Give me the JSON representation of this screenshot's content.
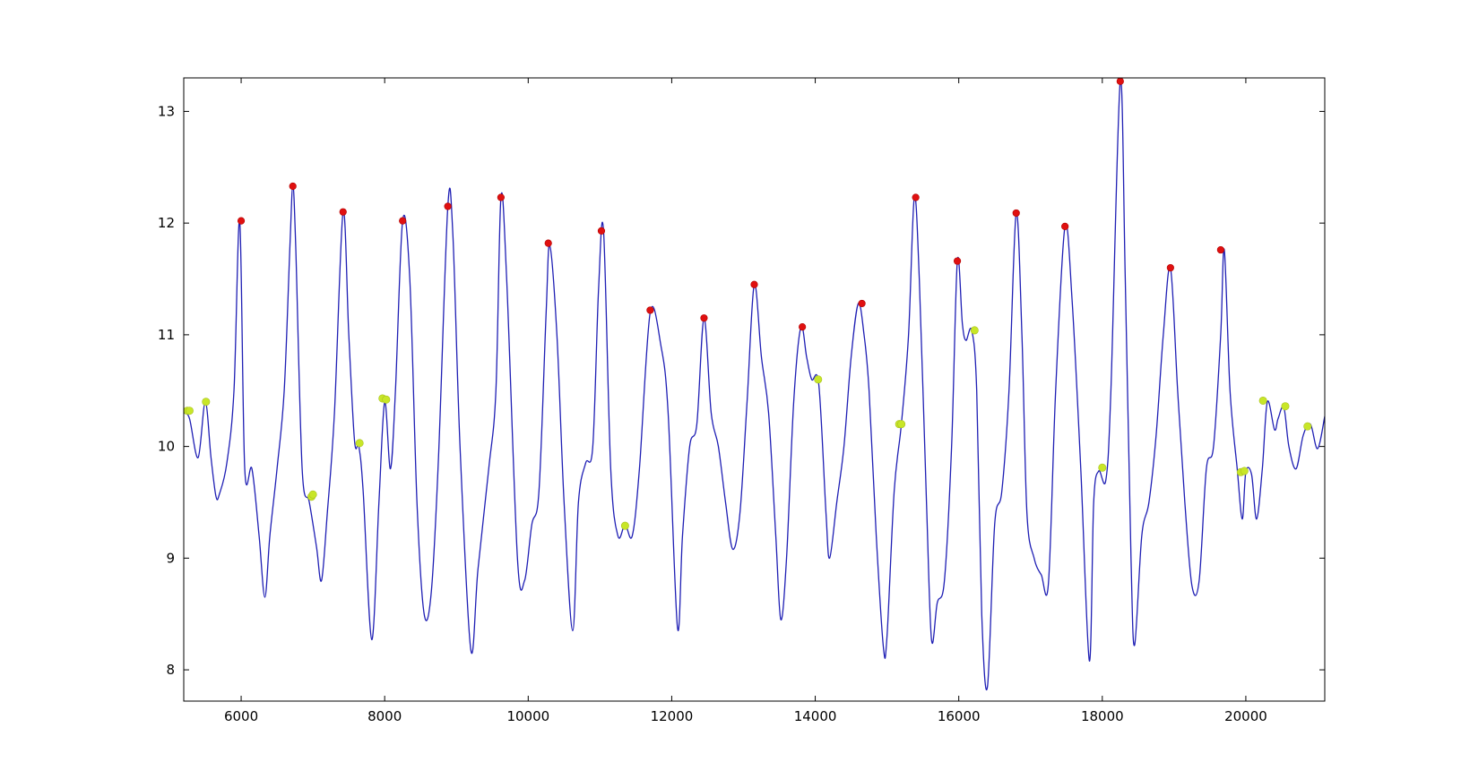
{
  "chart_data": {
    "type": "line",
    "title": "",
    "xlabel": "",
    "ylabel": "",
    "xlim": [
      5200,
      21100
    ],
    "ylim": [
      7.72,
      13.3
    ],
    "x_ticks": [
      6000,
      8000,
      10000,
      12000,
      14000,
      16000,
      18000,
      20000
    ],
    "y_ticks": [
      8,
      9,
      10,
      11,
      12,
      13
    ],
    "x_tick_labels": [
      "6000",
      "8000",
      "10000",
      "12000",
      "14000",
      "16000",
      "18000",
      "20000"
    ],
    "y_tick_labels": [
      "8",
      "9",
      "10",
      "11",
      "12",
      "13"
    ],
    "grid": false,
    "colors": {
      "line": "#1f1fb4",
      "peaks": "#e01010",
      "secondary": "#c8e628",
      "axes": "#000000"
    },
    "series": [
      {
        "type": "line",
        "x": [
          5200,
          5280,
          5400,
          5500,
          5580,
          5650,
          5700,
          5800,
          5900,
          5980,
          6050,
          6150,
          6250,
          6330,
          6400,
          6500,
          6600,
          6680,
          6720,
          6760,
          6850,
          6950,
          7050,
          7120,
          7200,
          7300,
          7420,
          7500,
          7580,
          7640,
          7700,
          7820,
          7920,
          8000,
          8080,
          8150,
          8250,
          8350,
          8450,
          8550,
          8650,
          8750,
          8880,
          8950,
          9050,
          9200,
          9300,
          9450,
          9550,
          9620,
          9700,
          9850,
          9950,
          10050,
          10150,
          10250,
          10300,
          10400,
          10500,
          10620,
          10700,
          10800,
          10900,
          10980,
          11050,
          11150,
          11250,
          11350,
          11450,
          11550,
          11700,
          11850,
          11950,
          12080,
          12150,
          12250,
          12350,
          12450,
          12550,
          12650,
          12750,
          12850,
          12950,
          13050,
          13150,
          13250,
          13350,
          13450,
          13520,
          13600,
          13700,
          13800,
          13880,
          13950,
          14050,
          14150,
          14200,
          14300,
          14400,
          14500,
          14600,
          14680,
          14750,
          14850,
          14950,
          15000,
          15100,
          15200,
          15300,
          15380,
          15450,
          15550,
          15620,
          15700,
          15800,
          15900,
          15980,
          16050,
          16100,
          16180,
          16250,
          16320,
          16400,
          16500,
          16600,
          16700,
          16800,
          16880,
          16950,
          17050,
          17150,
          17250,
          17350,
          17480,
          17580,
          17700,
          17820,
          17880,
          17950,
          18050,
          18120,
          18250,
          18320,
          18400,
          18450,
          18550,
          18650,
          18750,
          18850,
          18950,
          19050,
          19150,
          19250,
          19350,
          19450,
          19550,
          19650,
          19700,
          19780,
          19880,
          19950,
          20000,
          20080,
          20150,
          20230,
          20300,
          20400,
          20450,
          20530,
          20600,
          20700,
          20800,
          20900,
          21000,
          21100
        ],
        "y": [
          10.3,
          10.25,
          9.9,
          10.4,
          9.9,
          9.55,
          9.58,
          9.85,
          10.5,
          12.02,
          9.8,
          9.8,
          9.2,
          8.65,
          9.2,
          9.8,
          10.5,
          11.8,
          12.33,
          11.8,
          9.8,
          9.5,
          9.1,
          8.8,
          9.4,
          10.3,
          12.1,
          11.0,
          10.05,
          10.0,
          9.6,
          8.27,
          9.5,
          10.4,
          9.8,
          10.5,
          12.02,
          11.5,
          9.5,
          8.5,
          8.7,
          9.9,
          12.15,
          11.9,
          10.0,
          8.18,
          8.9,
          9.8,
          10.5,
          12.23,
          11.5,
          9.0,
          8.8,
          9.3,
          9.6,
          11.2,
          11.8,
          11.0,
          9.5,
          8.35,
          9.5,
          9.85,
          10.0,
          11.4,
          11.93,
          9.8,
          9.2,
          9.3,
          9.2,
          9.8,
          11.2,
          10.9,
          10.3,
          8.38,
          9.2,
          10.0,
          10.2,
          11.15,
          10.3,
          10.0,
          9.5,
          9.08,
          9.4,
          10.4,
          11.45,
          10.8,
          10.3,
          9.2,
          8.45,
          9.0,
          10.4,
          11.07,
          10.8,
          10.6,
          10.55,
          9.4,
          9.0,
          9.5,
          10.0,
          10.8,
          11.28,
          11.0,
          10.5,
          9.2,
          8.2,
          8.3,
          9.6,
          10.2,
          11.0,
          12.23,
          11.5,
          9.5,
          8.27,
          8.6,
          8.8,
          10.0,
          11.66,
          11.1,
          10.95,
          11.04,
          10.5,
          8.5,
          7.85,
          9.3,
          9.6,
          10.5,
          12.09,
          11.0,
          9.4,
          9.0,
          8.85,
          8.78,
          10.5,
          11.97,
          11.3,
          9.8,
          8.08,
          9.5,
          9.78,
          9.7,
          10.5,
          13.27,
          11.5,
          9.0,
          8.22,
          9.2,
          9.5,
          10.1,
          11.0,
          11.6,
          10.5,
          9.5,
          8.75,
          8.8,
          9.8,
          10.0,
          11.0,
          11.76,
          10.5,
          9.8,
          9.35,
          9.77,
          9.75,
          9.35,
          9.8,
          10.4,
          10.15,
          10.25,
          10.35,
          10.0,
          9.8,
          10.1,
          10.2,
          9.98,
          10.27
        ]
      },
      {
        "type": "scatter",
        "x": [
          6000,
          6720,
          7420,
          8250,
          8880,
          9620,
          10280,
          11020,
          11700,
          12450,
          13150,
          13820,
          14650,
          15400,
          15980,
          16800,
          17480,
          18250,
          18950,
          19650
        ],
        "y": [
          12.02,
          12.33,
          12.1,
          12.02,
          12.15,
          12.23,
          11.82,
          11.93,
          11.22,
          11.15,
          11.45,
          11.07,
          11.28,
          12.23,
          11.66,
          12.09,
          11.97,
          13.27,
          11.6,
          11.76
        ]
      },
      {
        "type": "scatter",
        "x": [
          5250,
          5280,
          5510,
          6980,
          7000,
          7650,
          7970,
          8020,
          11350,
          14040,
          15170,
          15200,
          16220,
          18000,
          19930,
          19980,
          20240,
          20550,
          20860
        ],
        "y": [
          10.32,
          10.32,
          10.4,
          9.55,
          9.57,
          10.03,
          10.43,
          10.42,
          9.29,
          10.6,
          10.2,
          10.2,
          11.04,
          9.81,
          9.77,
          9.78,
          10.41,
          10.36,
          10.18
        ]
      }
    ]
  }
}
